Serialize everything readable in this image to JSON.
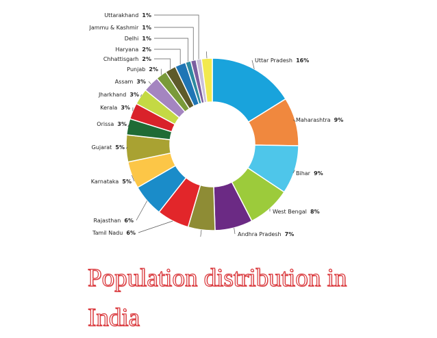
{
  "chart_data": {
    "type": "donut",
    "title": "Population distribution in India",
    "categories": [
      "Uttar Pradesh",
      "Maharashtra",
      "Bihar",
      "West Bengal",
      "Andhra Pradesh",
      null,
      "Tamil Nadu",
      "Rajasthan",
      "Karnataka",
      "Gujarat",
      "Orissa",
      "Kerala",
      "Jharkhand",
      "Assam",
      "Punjab",
      "Chhattisgarh",
      "Haryana",
      "Delhi",
      "Jammu & Kashmir",
      "Uttarakhand",
      null
    ],
    "values": [
      16,
      9,
      9,
      8,
      7,
      5,
      6,
      6,
      5,
      5,
      3,
      3,
      3,
      3,
      2,
      2,
      2,
      1,
      1,
      1,
      2
    ],
    "value_labels": [
      "16%",
      "9%",
      "9%",
      "8%",
      "7%",
      null,
      "6%",
      "6%",
      "5%",
      "5%",
      "3%",
      "3%",
      "3%",
      "3%",
      "2%",
      "2%",
      "2%",
      "1%",
      "1%",
      "1%",
      null
    ],
    "colors": [
      "#19a3dc",
      "#f0883e",
      "#4ec6ea",
      "#9ccb3b",
      "#6b2a84",
      "#8e8c35",
      "#e2262a",
      "#1a8cc9",
      "#fcc647",
      "#a9a232",
      "#1f6b35",
      "#d9222a",
      "#c4d944",
      "#a485c0",
      "#7a9a3a",
      "#5e5a2a",
      "#1f75b5",
      "#2d8aa0",
      "#7b5ea0",
      "#c9c0d8",
      "#f2e94e"
    ]
  }
}
